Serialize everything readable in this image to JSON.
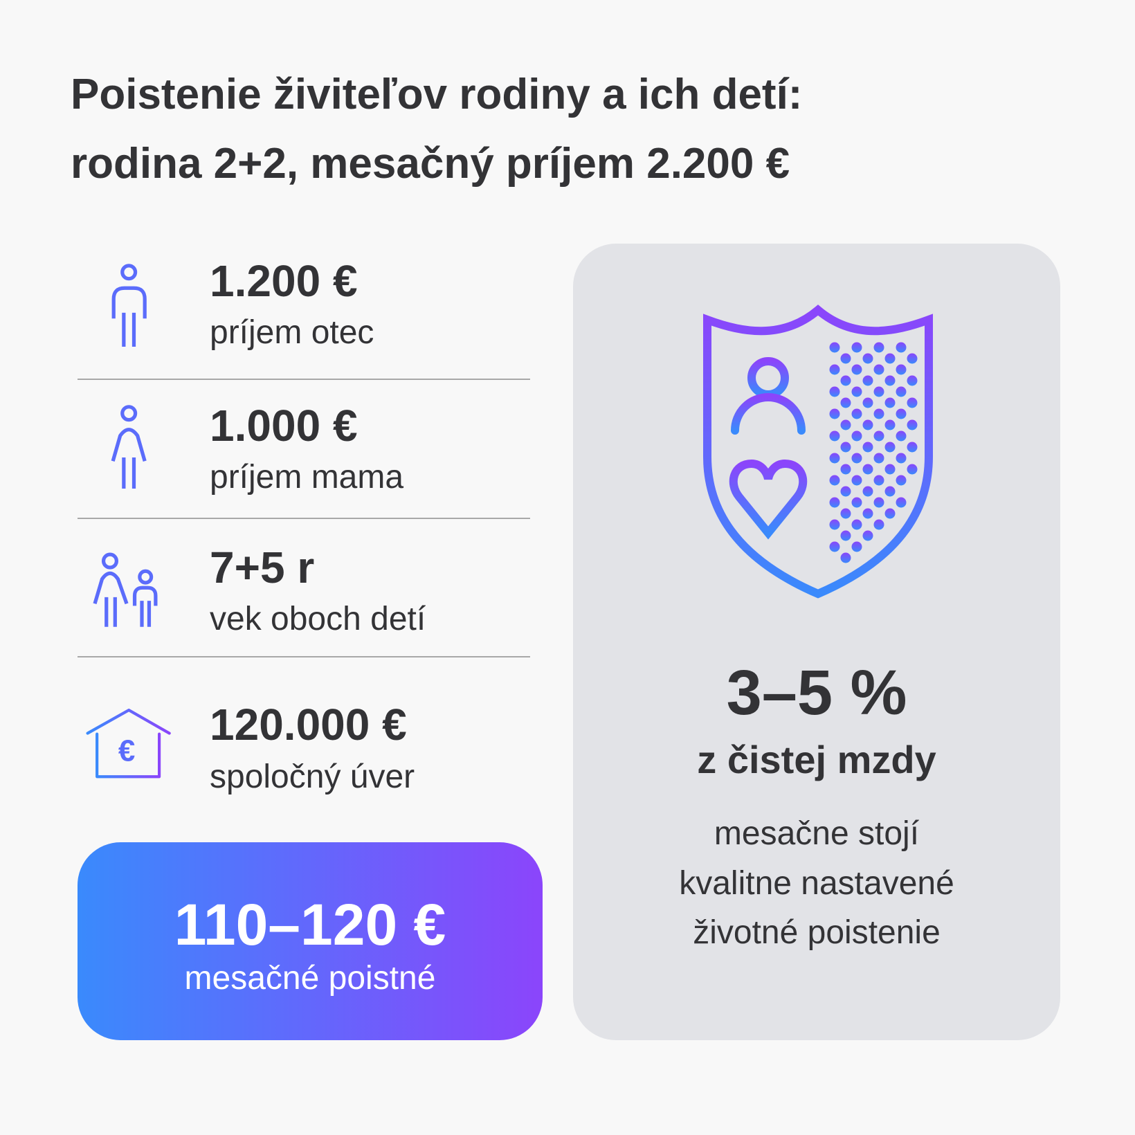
{
  "title": {
    "line1": "Poistenie živiteľov rodiny a ich detí:",
    "line2": "rodina 2+2, mesačný príjem 2.200 €"
  },
  "facts": [
    {
      "icon": "man-icon",
      "value": "1.200 €",
      "label": "príjem otec"
    },
    {
      "icon": "woman-icon",
      "value": "1.000 €",
      "label": "príjem mama"
    },
    {
      "icon": "children-icon",
      "value": "7+5 r",
      "label": "vek oboch detí"
    },
    {
      "icon": "house-euro-icon",
      "value": "120.000 €",
      "label": "spoločný úver",
      "icon_symbol": "€"
    }
  ],
  "premium": {
    "value": "110–120 €",
    "label": "mesačné poistné"
  },
  "info_panel": {
    "icon": "shield-person-heart-icon",
    "percent": "3–5 %",
    "percent_label": "z čistej mzdy",
    "lines": [
      "mesačne stojí",
      "kvalitne nastavené",
      "životné poistenie"
    ]
  },
  "colors": {
    "gradient_start": "#3a8afc",
    "gradient_end": "#8b45fb",
    "icon_blue": "#5b6cfb",
    "text": "#333336",
    "panel": "#e2e3e7"
  }
}
